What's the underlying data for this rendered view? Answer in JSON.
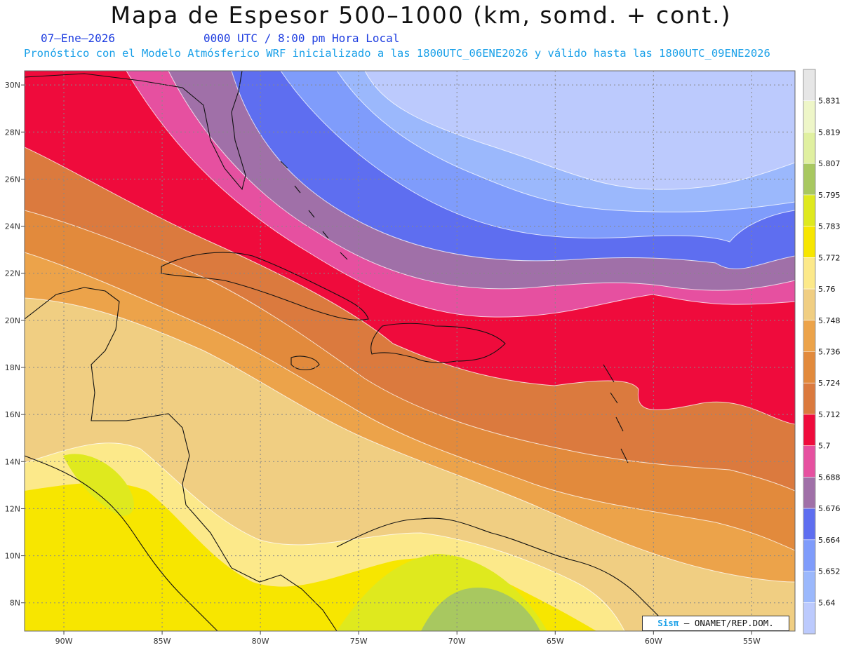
{
  "title": "Mapa de Espesor 500–1000 (km, somd. + cont.)",
  "subtitle": {
    "date": "07–Ene–2026",
    "time": "0000 UTC / 8:00 pm Hora Local",
    "forecast": "Pronóstico con el Modelo Atmósferico WRF inicializado a las 1800UTC_06ENE2026 y válido hasta las  1800UTC_09ENE2026"
  },
  "map": {
    "lon_range": [
      -92,
      -52.8
    ],
    "lat_range": [
      6.8,
      30.6
    ],
    "lon_ticks": [
      {
        "value": -90,
        "label": "90W"
      },
      {
        "value": -85,
        "label": "85W"
      },
      {
        "value": -80,
        "label": "80W"
      },
      {
        "value": -75,
        "label": "75W"
      },
      {
        "value": -70,
        "label": "70W"
      },
      {
        "value": -65,
        "label": "65W"
      },
      {
        "value": -60,
        "label": "60W"
      },
      {
        "value": -55,
        "label": "55W"
      }
    ],
    "lat_ticks": [
      {
        "value": 30,
        "label": "30N"
      },
      {
        "value": 28,
        "label": "28N"
      },
      {
        "value": 26,
        "label": "26N"
      },
      {
        "value": 24,
        "label": "24N"
      },
      {
        "value": 22,
        "label": "22N"
      },
      {
        "value": 20,
        "label": "20N"
      },
      {
        "value": 18,
        "label": "18N"
      },
      {
        "value": 16,
        "label": "16N"
      },
      {
        "value": 14,
        "label": "14N"
      },
      {
        "value": 12,
        "label": "12N"
      },
      {
        "value": 10,
        "label": "10N"
      },
      {
        "value": 8,
        "label": "8N"
      }
    ],
    "grid": true
  },
  "colorbar": {
    "labels": [
      "5.831",
      "5.819",
      "5.807",
      "5.795",
      "5.783",
      "5.772",
      "5.76",
      "5.748",
      "5.736",
      "5.724",
      "5.712",
      "5.7",
      "5.688",
      "5.676",
      "5.664",
      "5.652",
      "5.64"
    ],
    "colors": [
      "#e6e6e6",
      "#eef6c8",
      "#e0f0a0",
      "#a8c860",
      "#dfe91e",
      "#f7e600",
      "#fce98a",
      "#f0ce82",
      "#eca34a",
      "#e28a3c",
      "#db7a3e",
      "#ef0b3c",
      "#e650a0",
      "#a070a8",
      "#5e6ef0",
      "#7f9cfb",
      "#9bb8fc",
      "#bccafd"
    ]
  },
  "credit": {
    "brand": "Sisπ",
    "text": " – ONAMET/REP.DOM."
  }
}
